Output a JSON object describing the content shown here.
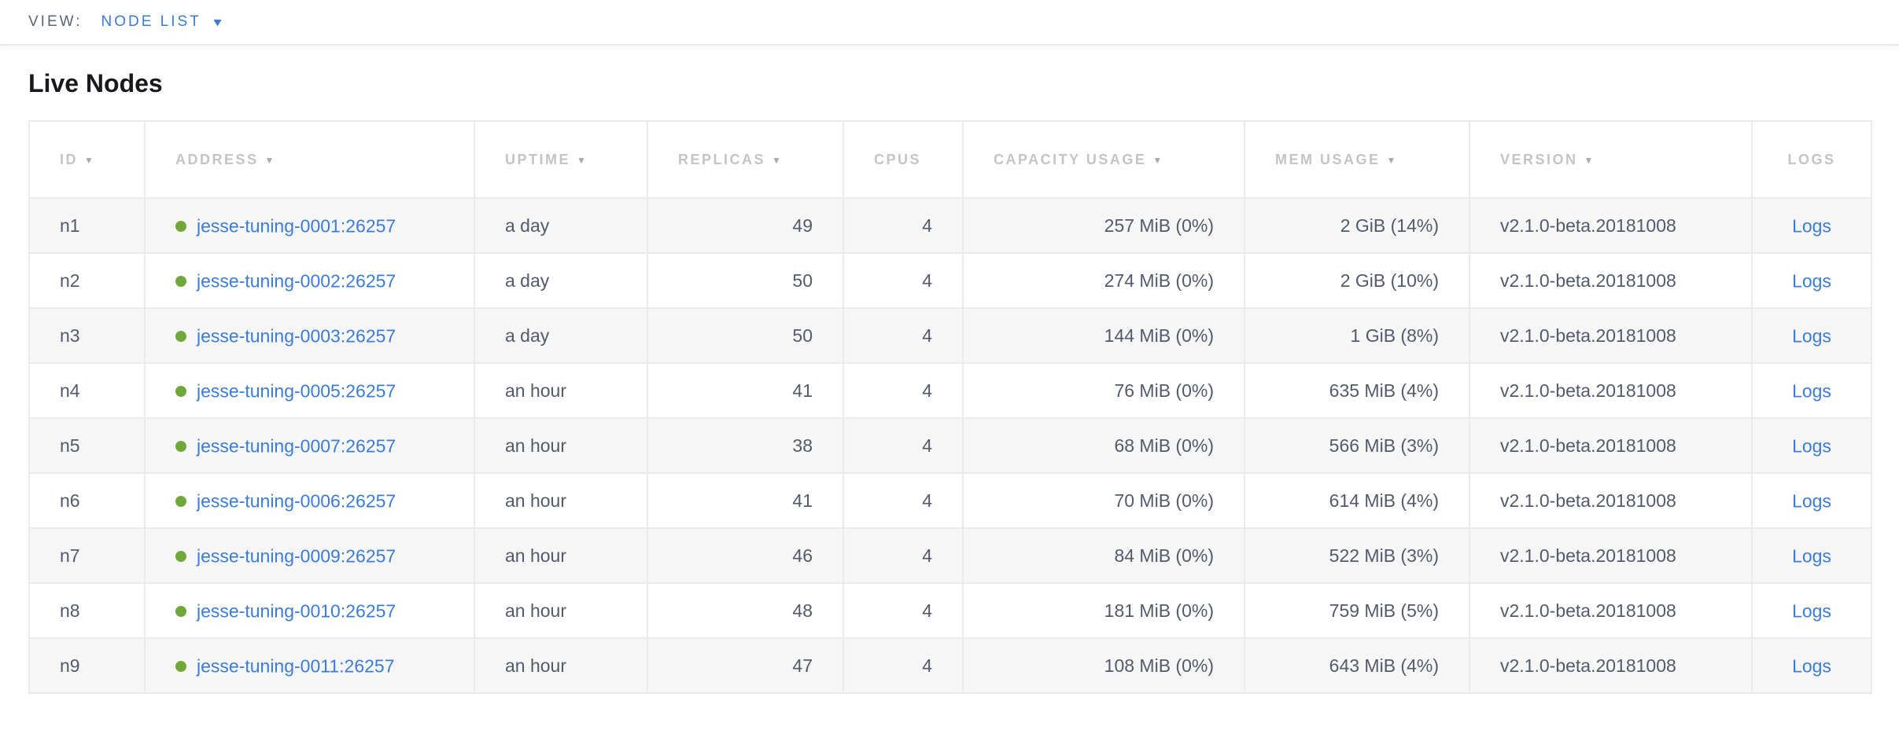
{
  "view_bar": {
    "label": "VIEW:",
    "selected_view": "NODE LIST",
    "chevron_icon": "▼"
  },
  "page": {
    "title": "Live Nodes"
  },
  "table": {
    "sort_arrow_icon": "▼",
    "columns": [
      {
        "key": "id",
        "label": "ID",
        "sortable": true
      },
      {
        "key": "address",
        "label": "ADDRESS",
        "sortable": true
      },
      {
        "key": "uptime",
        "label": "UPTIME",
        "sortable": true
      },
      {
        "key": "replicas",
        "label": "REPLICAS",
        "sortable": true
      },
      {
        "key": "cpus",
        "label": "CPUS",
        "sortable": false
      },
      {
        "key": "capacity",
        "label": "CAPACITY USAGE",
        "sortable": true
      },
      {
        "key": "mem",
        "label": "MEM USAGE",
        "sortable": true
      },
      {
        "key": "version",
        "label": "VERSION",
        "sortable": true
      },
      {
        "key": "logs",
        "label": "LOGS",
        "sortable": false
      }
    ],
    "rows": [
      {
        "id": "n1",
        "address": "jesse-tuning-0001:26257",
        "uptime": "a day",
        "replicas": "49",
        "cpus": "4",
        "capacity": "257 MiB (0%)",
        "mem": "2 GiB (14%)",
        "version": "v2.1.0-beta.20181008",
        "logs": "Logs",
        "status": "live"
      },
      {
        "id": "n2",
        "address": "jesse-tuning-0002:26257",
        "uptime": "a day",
        "replicas": "50",
        "cpus": "4",
        "capacity": "274 MiB (0%)",
        "mem": "2 GiB (10%)",
        "version": "v2.1.0-beta.20181008",
        "logs": "Logs",
        "status": "live"
      },
      {
        "id": "n3",
        "address": "jesse-tuning-0003:26257",
        "uptime": "a day",
        "replicas": "50",
        "cpus": "4",
        "capacity": "144 MiB (0%)",
        "mem": "1 GiB (8%)",
        "version": "v2.1.0-beta.20181008",
        "logs": "Logs",
        "status": "live"
      },
      {
        "id": "n4",
        "address": "jesse-tuning-0005:26257",
        "uptime": "an hour",
        "replicas": "41",
        "cpus": "4",
        "capacity": "76 MiB (0%)",
        "mem": "635 MiB (4%)",
        "version": "v2.1.0-beta.20181008",
        "logs": "Logs",
        "status": "live"
      },
      {
        "id": "n5",
        "address": "jesse-tuning-0007:26257",
        "uptime": "an hour",
        "replicas": "38",
        "cpus": "4",
        "capacity": "68 MiB (0%)",
        "mem": "566 MiB (3%)",
        "version": "v2.1.0-beta.20181008",
        "logs": "Logs",
        "status": "live"
      },
      {
        "id": "n6",
        "address": "jesse-tuning-0006:26257",
        "uptime": "an hour",
        "replicas": "41",
        "cpus": "4",
        "capacity": "70 MiB (0%)",
        "mem": "614 MiB (4%)",
        "version": "v2.1.0-beta.20181008",
        "logs": "Logs",
        "status": "live"
      },
      {
        "id": "n7",
        "address": "jesse-tuning-0009:26257",
        "uptime": "an hour",
        "replicas": "46",
        "cpus": "4",
        "capacity": "84 MiB (0%)",
        "mem": "522 MiB (3%)",
        "version": "v2.1.0-beta.20181008",
        "logs": "Logs",
        "status": "live"
      },
      {
        "id": "n8",
        "address": "jesse-tuning-0010:26257",
        "uptime": "an hour",
        "replicas": "48",
        "cpus": "4",
        "capacity": "181 MiB (0%)",
        "mem": "759 MiB (5%)",
        "version": "v2.1.0-beta.20181008",
        "logs": "Logs",
        "status": "live"
      },
      {
        "id": "n9",
        "address": "jesse-tuning-0011:26257",
        "uptime": "an hour",
        "replicas": "47",
        "cpus": "4",
        "capacity": "108 MiB (0%)",
        "mem": "643 MiB (4%)",
        "version": "v2.1.0-beta.20181008",
        "logs": "Logs",
        "status": "live"
      }
    ]
  },
  "colors": {
    "link_blue": "#3b7cd8",
    "node_live_green": "#71a83a",
    "header_gray": "#c4c4c4",
    "cell_text": "#525a6c",
    "row_stripe": "#f6f6f6",
    "border": "#ebebeb"
  }
}
